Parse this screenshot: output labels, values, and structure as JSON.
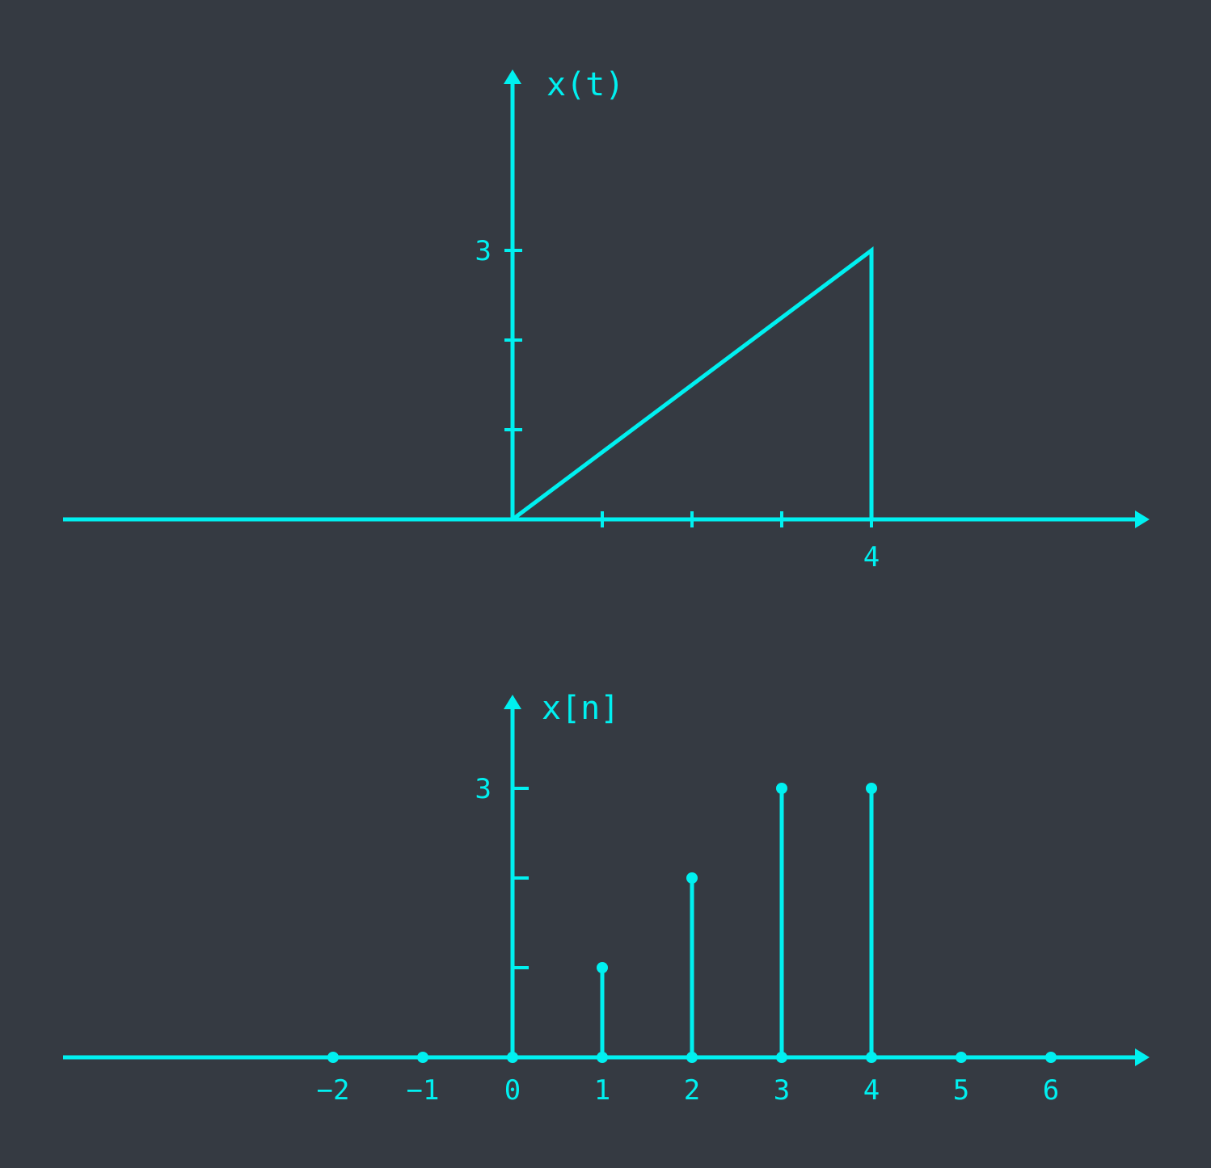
{
  "colors": {
    "background": "#353a42",
    "accent": "#00f0f0"
  },
  "chart_data": [
    {
      "type": "line",
      "ylabel": "x(t)",
      "xlabel": "",
      "xlim": [
        -5,
        7
      ],
      "ylim": [
        0,
        3
      ],
      "x_ticks": [
        1,
        2,
        3,
        4
      ],
      "x_tick_labels": [
        {
          "value": 4,
          "text": "4"
        }
      ],
      "y_ticks": [
        1,
        2,
        3
      ],
      "y_tick_labels": [
        {
          "value": 3,
          "text": "3"
        }
      ],
      "series": [
        {
          "x": [
            -5,
            0,
            4,
            4,
            7
          ],
          "y": [
            0,
            0,
            3,
            0,
            0
          ]
        }
      ],
      "grid": false
    },
    {
      "type": "stem",
      "ylabel": "x[n]",
      "xlabel": "",
      "xlim": [
        -5,
        7
      ],
      "ylim": [
        0,
        3
      ],
      "y_ticks": [
        1,
        2,
        3
      ],
      "y_tick_labels": [
        {
          "value": 3,
          "text": "3"
        }
      ],
      "categories": [
        "−2",
        "−1",
        "0",
        "1",
        "2",
        "3",
        "4",
        "5",
        "6"
      ],
      "x": [
        -2,
        -1,
        0,
        1,
        2,
        3,
        4,
        5,
        6
      ],
      "values": [
        0,
        0,
        0,
        1,
        2,
        3,
        3,
        0,
        0
      ],
      "grid": false
    }
  ]
}
